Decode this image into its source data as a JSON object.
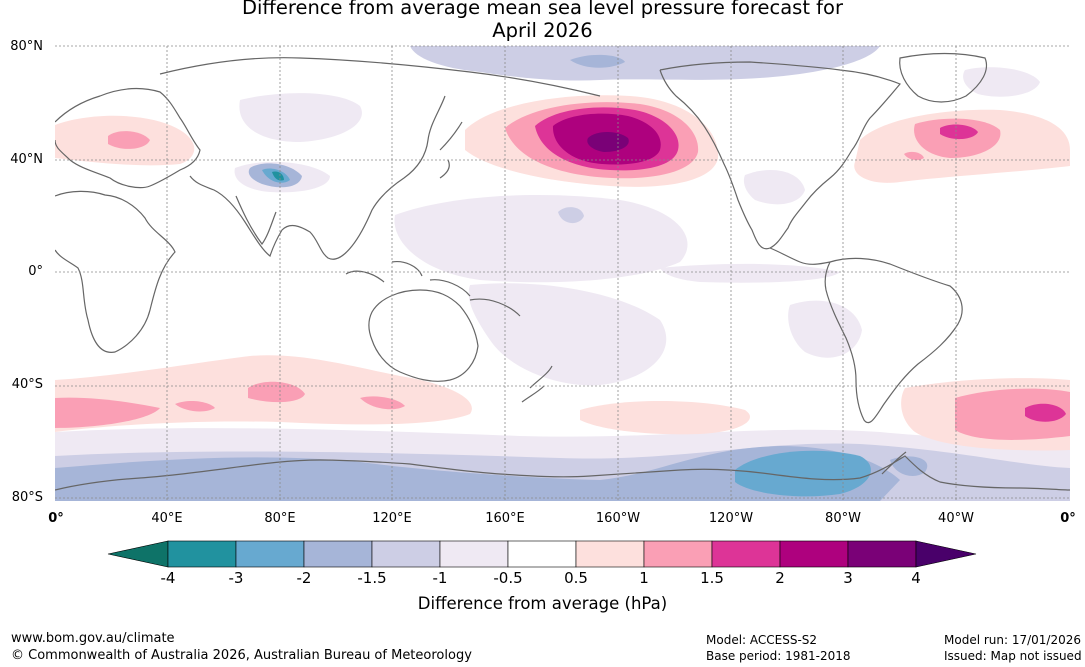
{
  "title": {
    "line1": "Difference from average mean sea level pressure forecast for",
    "line2": "April 2026"
  },
  "map": {
    "lat_labels": [
      "80°N",
      "40°N",
      "0°",
      "40°S",
      "80°S"
    ],
    "lon_labels": [
      "0°",
      "40°E",
      "80°E",
      "120°E",
      "160°E",
      "160°W",
      "120°W",
      "80°W",
      "40°W",
      "0°"
    ],
    "colors": {
      "land_outline": "#666666",
      "grid": "#8a8a8a"
    }
  },
  "legend": {
    "ticks": [
      "-4",
      "-3",
      "-2",
      "-1.5",
      "-1",
      "-0.5",
      "0.5",
      "1",
      "1.5",
      "2",
      "3",
      "4"
    ],
    "colors": [
      "#0e7368",
      "#21929f",
      "#67a9d0",
      "#a6b5d8",
      "#cdcee5",
      "#efe9f3",
      "#ffffff",
      "#fde0dd",
      "#fa9fb5",
      "#dd3497",
      "#ae017e",
      "#7a0177",
      "#49006a"
    ],
    "label": "Difference from average (hPa)"
  },
  "footer": {
    "website": "www.bom.gov.au/climate",
    "copyright": "© Commonwealth of Australia 2026, Australian Bureau of Meteorology",
    "model": "Model: ACCESS-S2",
    "base_period": "Base period: 1981-2018",
    "model_run": "Model run: 17/01/2026",
    "issued": "Issued: Map not issued"
  }
}
